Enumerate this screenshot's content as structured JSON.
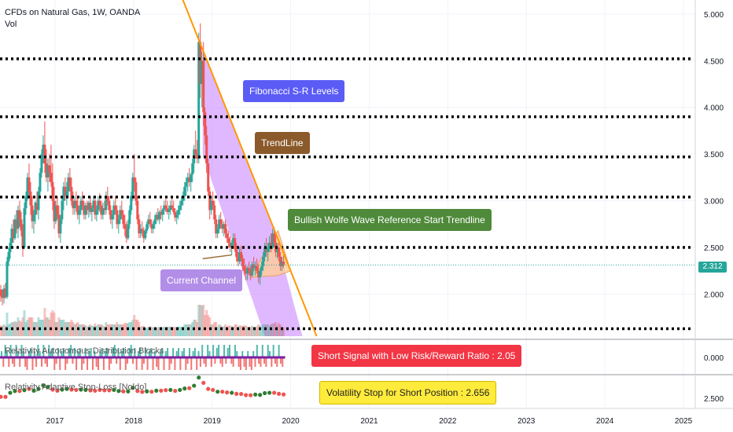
{
  "header": {
    "symbol_title": "CFDs on Natural Gas, 1W, OANDA",
    "vol_label": "Vol"
  },
  "last_price": "2.312",
  "panes": {
    "indicator1_title": "Relativity Autonomous Distribution Blocks",
    "indicator1_axis_label": "0.000",
    "indicator2_title": "Relativity Adaptive Stop-Loss [Noldo]",
    "indicator2_axis_label": "2.500"
  },
  "annotations": {
    "fib_levels": "Fibonacci S-R Levels",
    "trendline": "TrendLine",
    "wolfe": "Bullish Wolfe Wave Reference Start Trendline",
    "current_channel": "Current Channel",
    "short_signal": "Short Signal with Low Risk/Reward Ratio : 2.05",
    "vol_stop": "Volatility Stop for Short Position : 2.656"
  },
  "colors": {
    "bull": "#26a69a",
    "bear": "#ef5350",
    "fib_line": "#000000",
    "trendline": "#ff9800",
    "channel_fill": "#c77dff",
    "wedge_fill": "#ffcc99",
    "fib_callout": "#5b5cf6",
    "trend_callout": "#8b5a2b",
    "wolfe_callout": "#4e8a3a",
    "channel_callout": "#b38ee8",
    "short_callout": "#f23645",
    "stop_callout": "#ffeb3b"
  },
  "chart_data": {
    "type": "candlestick",
    "title": "CFDs on Natural Gas, 1W, OANDA",
    "x_ticks": [
      "2017",
      "2018",
      "2019",
      "2020",
      "2021",
      "2022",
      "2023",
      "2024",
      "2025"
    ],
    "x_tick_years": [
      2017,
      2018,
      2019,
      2020,
      2021,
      2022,
      2023,
      2024,
      2025
    ],
    "xlim": [
      2016.3,
      2025.15
    ],
    "y_ticks": [
      "5.000",
      "4.500",
      "4.000",
      "3.500",
      "3.000",
      "2.500",
      "2.000"
    ],
    "y_tick_values": [
      5.0,
      4.5,
      4.0,
      3.5,
      3.0,
      2.5,
      2.0
    ],
    "ylim": [
      1.55,
      5.15
    ],
    "fib_levels": [
      4.52,
      3.9,
      3.47,
      3.04,
      2.5,
      1.63
    ],
    "last_price": 2.312,
    "trendline": [
      [
        2018.52,
        5.38
      ],
      [
        2020.33,
        1.55
      ]
    ],
    "channel": [
      [
        2018.88,
        4.6
      ],
      [
        2019.8,
        2.65
      ],
      [
        2020.15,
        1.55
      ],
      [
        2019.67,
        1.55
      ],
      [
        2018.88,
        3.5
      ]
    ],
    "wedge": [
      [
        2019.48,
        2.18
      ],
      [
        2019.84,
        2.68
      ],
      [
        2020.0,
        2.25
      ],
      [
        2019.84,
        2.2
      ]
    ],
    "ohlc": [
      [
        2016.31,
        2.05,
        2.1,
        1.92,
        1.98
      ],
      [
        2016.33,
        1.98,
        2.05,
        1.88,
        1.96
      ],
      [
        2016.35,
        1.96,
        2.1,
        1.9,
        2.06
      ],
      [
        2016.37,
        2.06,
        2.12,
        1.95,
        1.97
      ],
      [
        2016.39,
        1.97,
        2.4,
        1.95,
        2.35
      ],
      [
        2016.41,
        2.35,
        2.5,
        2.3,
        2.45
      ],
      [
        2016.43,
        2.45,
        2.6,
        2.38,
        2.55
      ],
      [
        2016.45,
        2.55,
        2.75,
        2.5,
        2.7
      ],
      [
        2016.47,
        2.7,
        2.8,
        2.55,
        2.6
      ],
      [
        2016.49,
        2.6,
        2.85,
        2.58,
        2.8
      ],
      [
        2016.51,
        2.8,
        2.9,
        2.65,
        2.7
      ],
      [
        2016.53,
        2.7,
        2.95,
        2.6,
        2.9
      ],
      [
        2016.55,
        2.9,
        3.0,
        2.72,
        2.8
      ],
      [
        2016.57,
        2.8,
        2.88,
        2.62,
        2.68
      ],
      [
        2016.59,
        2.68,
        2.75,
        2.4,
        2.5
      ],
      [
        2016.61,
        2.5,
        2.98,
        2.48,
        2.92
      ],
      [
        2016.63,
        2.92,
        3.1,
        2.85,
        3.05
      ],
      [
        2016.65,
        3.05,
        3.3,
        3.0,
        3.25
      ],
      [
        2016.67,
        3.25,
        3.4,
        3.05,
        3.1
      ],
      [
        2016.69,
        3.1,
        3.2,
        2.85,
        2.95
      ],
      [
        2016.71,
        2.95,
        3.05,
        2.7,
        2.78
      ],
      [
        2016.73,
        2.78,
        2.9,
        2.65,
        2.85
      ],
      [
        2016.75,
        2.85,
        3.0,
        2.75,
        2.98
      ],
      [
        2016.77,
        2.98,
        3.1,
        2.85,
        2.9
      ],
      [
        2016.79,
        2.9,
        3.15,
        2.8,
        3.1
      ],
      [
        2016.81,
        3.1,
        3.35,
        3.05,
        3.3
      ],
      [
        2016.83,
        3.3,
        3.55,
        3.25,
        3.5
      ],
      [
        2016.85,
        3.5,
        3.7,
        3.4,
        3.6
      ],
      [
        2016.87,
        3.6,
        3.85,
        3.3,
        3.4
      ],
      [
        2016.89,
        3.4,
        3.55,
        3.2,
        3.25
      ],
      [
        2016.91,
        3.25,
        3.45,
        3.1,
        3.38
      ],
      [
        2016.93,
        3.38,
        3.5,
        3.2,
        3.3
      ],
      [
        2016.95,
        3.3,
        3.6,
        3.15,
        3.2
      ],
      [
        2016.97,
        3.2,
        3.4,
        2.9,
        3.0
      ],
      [
        2016.99,
        3.0,
        3.15,
        2.7,
        2.78
      ],
      [
        2017.01,
        2.78,
        3.0,
        2.75,
        2.95
      ],
      [
        2017.03,
        2.95,
        3.05,
        2.8,
        2.85
      ],
      [
        2017.05,
        2.85,
        2.95,
        2.6,
        2.65
      ],
      [
        2017.07,
        2.65,
        2.85,
        2.55,
        2.8
      ],
      [
        2017.09,
        2.8,
        3.05,
        2.75,
        3.0
      ],
      [
        2017.11,
        3.0,
        3.2,
        2.9,
        3.15
      ],
      [
        2017.13,
        3.15,
        3.25,
        3.0,
        3.05
      ],
      [
        2017.15,
        3.05,
        3.2,
        2.95,
        3.1
      ],
      [
        2017.17,
        3.1,
        3.3,
        3.05,
        3.25
      ],
      [
        2017.19,
        3.25,
        3.35,
        3.1,
        3.15
      ],
      [
        2017.21,
        3.15,
        3.25,
        2.95,
        3.0
      ],
      [
        2017.23,
        3.0,
        3.1,
        2.85,
        2.92
      ],
      [
        2017.25,
        2.92,
        3.05,
        2.85,
        3.0
      ],
      [
        2017.27,
        3.0,
        3.1,
        2.88,
        2.95
      ],
      [
        2017.29,
        2.95,
        3.05,
        2.8,
        2.85
      ],
      [
        2017.31,
        2.85,
        2.95,
        2.75,
        2.9
      ],
      [
        2017.33,
        2.9,
        3.05,
        2.85,
        3.0
      ],
      [
        2017.35,
        3.0,
        3.1,
        2.9,
        2.95
      ],
      [
        2017.37,
        2.95,
        3.0,
        2.8,
        2.85
      ],
      [
        2017.39,
        2.85,
        2.98,
        2.8,
        2.95
      ],
      [
        2017.41,
        2.95,
        3.0,
        2.85,
        2.9
      ],
      [
        2017.43,
        2.9,
        3.0,
        2.82,
        2.98
      ],
      [
        2017.45,
        2.98,
        3.05,
        2.85,
        2.88
      ],
      [
        2017.47,
        2.88,
        2.95,
        2.78,
        2.92
      ],
      [
        2017.49,
        2.92,
        3.05,
        2.88,
        3.0
      ],
      [
        2017.51,
        3.0,
        3.02,
        2.8,
        2.85
      ],
      [
        2017.53,
        2.85,
        2.95,
        2.78,
        2.9
      ],
      [
        2017.55,
        2.9,
        3.05,
        2.85,
        3.0
      ],
      [
        2017.57,
        3.0,
        3.08,
        2.88,
        2.95
      ],
      [
        2017.59,
        2.95,
        3.0,
        2.8,
        2.85
      ],
      [
        2017.61,
        2.85,
        2.98,
        2.8,
        2.92
      ],
      [
        2017.63,
        2.92,
        3.0,
        2.85,
        2.9
      ],
      [
        2017.65,
        2.9,
        3.1,
        2.85,
        3.05
      ],
      [
        2017.67,
        3.05,
        3.15,
        2.95,
        3.0
      ],
      [
        2017.69,
        3.0,
        3.05,
        2.85,
        2.9
      ],
      [
        2017.71,
        2.9,
        2.95,
        2.75,
        2.8
      ],
      [
        2017.73,
        2.8,
        2.9,
        2.7,
        2.85
      ],
      [
        2017.75,
        2.85,
        3.0,
        2.8,
        2.95
      ],
      [
        2017.77,
        2.95,
        3.05,
        2.85,
        2.9
      ],
      [
        2017.79,
        2.9,
        2.95,
        2.7,
        2.75
      ],
      [
        2017.81,
        2.75,
        2.85,
        2.65,
        2.8
      ],
      [
        2017.83,
        2.8,
        2.95,
        2.75,
        2.9
      ],
      [
        2017.85,
        2.9,
        3.0,
        2.8,
        2.85
      ],
      [
        2017.87,
        2.85,
        2.9,
        2.7,
        2.75
      ],
      [
        2017.89,
        2.75,
        2.85,
        2.62,
        2.7
      ],
      [
        2017.91,
        2.7,
        2.78,
        2.55,
        2.6
      ],
      [
        2017.93,
        2.6,
        2.8,
        2.58,
        2.75
      ],
      [
        2017.95,
        2.75,
        2.95,
        2.7,
        2.9
      ],
      [
        2017.97,
        2.9,
        3.1,
        2.85,
        3.05
      ],
      [
        2017.99,
        3.05,
        3.3,
        3.0,
        3.25
      ],
      [
        2018.01,
        3.25,
        3.5,
        3.1,
        3.2
      ],
      [
        2018.03,
        3.2,
        3.25,
        2.95,
        3.0
      ],
      [
        2018.05,
        3.0,
        3.05,
        2.75,
        2.8
      ],
      [
        2018.07,
        2.8,
        2.85,
        2.6,
        2.65
      ],
      [
        2018.09,
        2.65,
        2.75,
        2.6,
        2.7
      ],
      [
        2018.11,
        2.7,
        2.78,
        2.62,
        2.68
      ],
      [
        2018.13,
        2.68,
        2.72,
        2.55,
        2.6
      ],
      [
        2018.15,
        2.6,
        2.7,
        2.58,
        2.68
      ],
      [
        2018.17,
        2.68,
        2.78,
        2.65,
        2.75
      ],
      [
        2018.19,
        2.75,
        2.85,
        2.7,
        2.8
      ],
      [
        2018.21,
        2.8,
        2.88,
        2.72,
        2.75
      ],
      [
        2018.23,
        2.75,
        2.8,
        2.65,
        2.7
      ],
      [
        2018.25,
        2.7,
        2.78,
        2.65,
        2.75
      ],
      [
        2018.27,
        2.75,
        2.85,
        2.7,
        2.8
      ],
      [
        2018.29,
        2.8,
        2.88,
        2.75,
        2.85
      ],
      [
        2018.31,
        2.85,
        2.92,
        2.78,
        2.8
      ],
      [
        2018.33,
        2.8,
        2.9,
        2.75,
        2.88
      ],
      [
        2018.35,
        2.88,
        2.95,
        2.8,
        2.85
      ],
      [
        2018.37,
        2.85,
        2.92,
        2.78,
        2.9
      ],
      [
        2018.39,
        2.9,
        3.0,
        2.85,
        2.95
      ],
      [
        2018.41,
        2.95,
        3.02,
        2.88,
        2.92
      ],
      [
        2018.43,
        2.92,
        3.0,
        2.85,
        2.88
      ],
      [
        2018.45,
        2.88,
        2.95,
        2.8,
        2.9
      ],
      [
        2018.47,
        2.9,
        3.0,
        2.85,
        2.95
      ],
      [
        2018.49,
        2.95,
        3.05,
        2.9,
        2.92
      ],
      [
        2018.51,
        2.92,
        3.0,
        2.85,
        2.88
      ],
      [
        2018.53,
        2.88,
        2.92,
        2.78,
        2.82
      ],
      [
        2018.55,
        2.82,
        2.9,
        2.75,
        2.85
      ],
      [
        2018.57,
        2.85,
        2.95,
        2.8,
        2.9
      ],
      [
        2018.59,
        2.9,
        3.0,
        2.85,
        2.95
      ],
      [
        2018.61,
        2.95,
        3.05,
        2.9,
        3.0
      ],
      [
        2018.63,
        3.0,
        3.1,
        2.95,
        3.05
      ],
      [
        2018.65,
        3.05,
        3.2,
        3.0,
        3.15
      ],
      [
        2018.67,
        3.15,
        3.25,
        3.05,
        3.2
      ],
      [
        2018.69,
        3.2,
        3.3,
        3.1,
        3.25
      ],
      [
        2018.71,
        3.25,
        3.35,
        3.15,
        3.2
      ],
      [
        2018.73,
        3.2,
        3.3,
        3.1,
        3.28
      ],
      [
        2018.75,
        3.28,
        3.45,
        3.2,
        3.4
      ],
      [
        2018.77,
        3.4,
        3.6,
        3.3,
        3.55
      ],
      [
        2018.79,
        3.55,
        3.75,
        3.45,
        3.5
      ],
      [
        2018.81,
        3.5,
        3.65,
        3.4,
        3.45
      ],
      [
        2018.83,
        3.45,
        4.8,
        3.4,
        4.7
      ],
      [
        2018.85,
        4.7,
        4.9,
        4.1,
        4.25
      ],
      [
        2018.87,
        4.25,
        4.6,
        4.0,
        4.5
      ],
      [
        2018.89,
        4.5,
        4.7,
        3.8,
        3.95
      ],
      [
        2018.91,
        3.95,
        4.0,
        3.6,
        3.7
      ],
      [
        2018.93,
        3.7,
        3.8,
        3.3,
        3.4
      ],
      [
        2018.95,
        3.4,
        3.45,
        3.05,
        3.1
      ],
      [
        2018.97,
        3.1,
        3.15,
        2.8,
        2.9
      ],
      [
        2018.99,
        2.9,
        3.05,
        2.85,
        3.0
      ],
      [
        2019.01,
        3.0,
        3.1,
        2.9,
        2.95
      ],
      [
        2019.03,
        2.95,
        3.0,
        2.75,
        2.8
      ],
      [
        2019.05,
        2.8,
        2.85,
        2.6,
        2.65
      ],
      [
        2019.07,
        2.65,
        2.75,
        2.6,
        2.7
      ],
      [
        2019.09,
        2.7,
        2.85,
        2.65,
        2.8
      ],
      [
        2019.11,
        2.8,
        2.88,
        2.7,
        2.75
      ],
      [
        2019.13,
        2.75,
        2.8,
        2.65,
        2.7
      ],
      [
        2019.15,
        2.7,
        2.78,
        2.62,
        2.75
      ],
      [
        2019.17,
        2.75,
        2.8,
        2.6,
        2.65
      ],
      [
        2019.19,
        2.65,
        2.7,
        2.55,
        2.6
      ],
      [
        2019.21,
        2.6,
        2.68,
        2.5,
        2.55
      ],
      [
        2019.23,
        2.55,
        2.62,
        2.45,
        2.5
      ],
      [
        2019.25,
        2.5,
        2.58,
        2.42,
        2.55
      ],
      [
        2019.27,
        2.55,
        2.65,
        2.5,
        2.6
      ],
      [
        2019.29,
        2.6,
        2.65,
        2.45,
        2.48
      ],
      [
        2019.31,
        2.48,
        2.55,
        2.35,
        2.4
      ],
      [
        2019.33,
        2.4,
        2.45,
        2.3,
        2.35
      ],
      [
        2019.35,
        2.35,
        2.5,
        2.32,
        2.45
      ],
      [
        2019.37,
        2.45,
        2.52,
        2.35,
        2.38
      ],
      [
        2019.39,
        2.38,
        2.42,
        2.25,
        2.3
      ],
      [
        2019.41,
        2.3,
        2.38,
        2.2,
        2.25
      ],
      [
        2019.43,
        2.25,
        2.32,
        2.15,
        2.22
      ],
      [
        2019.45,
        2.22,
        2.3,
        2.15,
        2.28
      ],
      [
        2019.47,
        2.28,
        2.35,
        2.2,
        2.25
      ],
      [
        2019.49,
        2.25,
        2.3,
        2.15,
        2.2
      ],
      [
        2019.51,
        2.2,
        2.35,
        2.18,
        2.32
      ],
      [
        2019.53,
        2.32,
        2.4,
        2.25,
        2.28
      ],
      [
        2019.55,
        2.28,
        2.35,
        2.2,
        2.3
      ],
      [
        2019.57,
        2.3,
        2.38,
        2.22,
        2.25
      ],
      [
        2019.59,
        2.25,
        2.32,
        2.12,
        2.18
      ],
      [
        2019.61,
        2.18,
        2.28,
        2.1,
        2.25
      ],
      [
        2019.63,
        2.25,
        2.35,
        2.2,
        2.3
      ],
      [
        2019.65,
        2.3,
        2.45,
        2.25,
        2.4
      ],
      [
        2019.67,
        2.4,
        2.55,
        2.35,
        2.5
      ],
      [
        2019.69,
        2.5,
        2.6,
        2.4,
        2.45
      ],
      [
        2019.71,
        2.45,
        2.55,
        2.35,
        2.5
      ],
      [
        2019.73,
        2.5,
        2.62,
        2.45,
        2.55
      ],
      [
        2019.75,
        2.55,
        2.65,
        2.45,
        2.5
      ],
      [
        2019.77,
        2.5,
        2.7,
        2.48,
        2.65
      ],
      [
        2019.79,
        2.65,
        2.72,
        2.5,
        2.55
      ],
      [
        2019.81,
        2.55,
        2.65,
        2.4,
        2.45
      ],
      [
        2019.83,
        2.45,
        2.55,
        2.38,
        2.5
      ],
      [
        2019.85,
        2.5,
        2.58,
        2.35,
        2.4
      ],
      [
        2019.87,
        2.4,
        2.45,
        2.25,
        2.3
      ],
      [
        2019.89,
        2.3,
        2.4,
        2.25,
        2.35
      ],
      [
        2019.91,
        2.35,
        2.42,
        2.28,
        2.312
      ]
    ],
    "osc1": [
      1,
      -1,
      1,
      1,
      -1,
      1,
      -1,
      -1,
      1,
      1,
      -1,
      1,
      1,
      -1,
      -1,
      1,
      1,
      -1,
      1,
      -1,
      1,
      1,
      -1,
      1,
      -1,
      -1,
      1,
      1,
      1,
      -1,
      -1,
      1,
      -1,
      1,
      1,
      -1,
      -1,
      1,
      1,
      -1,
      1,
      -1,
      1,
      1,
      -1,
      -1,
      1,
      -1,
      1,
      1,
      -1,
      1,
      -1,
      -1,
      1,
      1,
      -1,
      1,
      1,
      -1,
      -1,
      1,
      1,
      -1,
      1,
      -1,
      1,
      1,
      -1,
      -1,
      1,
      1,
      -1,
      1,
      -1,
      1,
      1,
      -1,
      -1,
      1,
      -1,
      1,
      1,
      -1,
      1,
      -1,
      -1,
      1,
      1,
      -1,
      1,
      1,
      -1,
      -1,
      1,
      -1,
      1,
      1,
      -1,
      1,
      1,
      -1,
      -1,
      1,
      -1,
      1,
      1,
      -1,
      1,
      -1,
      1,
      -1,
      -1,
      1,
      1,
      -1,
      1,
      -1,
      1,
      1,
      -1,
      -1,
      1,
      -1,
      1,
      1,
      -1,
      -1,
      1,
      1,
      -1,
      -1,
      1,
      -1,
      -1,
      1,
      -1,
      -1,
      1,
      -1,
      1,
      -1,
      -1,
      1,
      -1,
      -1,
      1,
      1,
      -1,
      1,
      -1,
      -1,
      1,
      -1,
      -1
    ],
    "osc1_axis_value": 0.0,
    "stop_axis_value": 2.5,
    "vol_stop_value": 2.656,
    "short_risk_reward": 2.05
  }
}
